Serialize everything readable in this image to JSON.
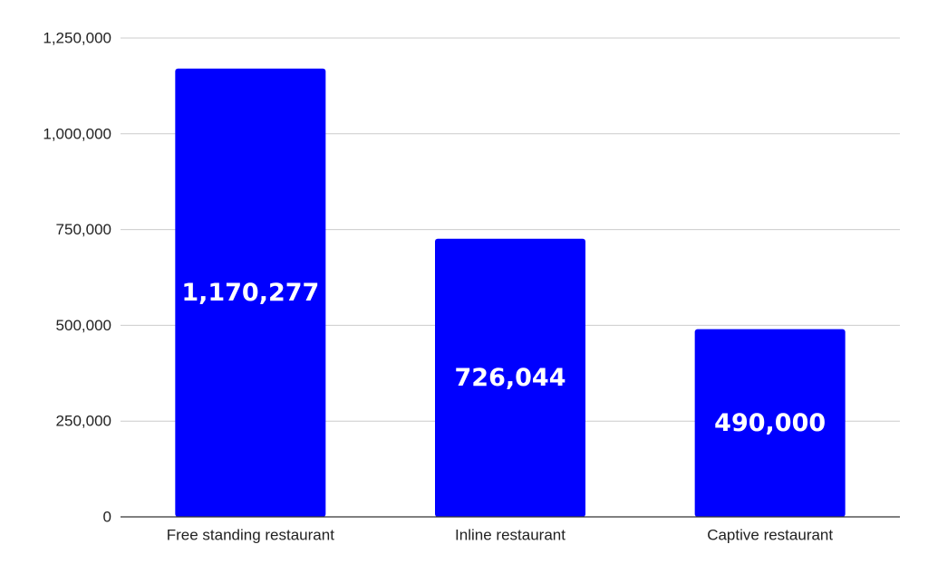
{
  "chart_data": {
    "type": "bar",
    "title": "",
    "xlabel": "",
    "ylabel": "",
    "categories": [
      "Free standing restaurant",
      "Inline restaurant",
      "Captive restaurant"
    ],
    "values": [
      1170277,
      726044,
      490000
    ],
    "data_labels": [
      "1,170,277",
      "726,044",
      "490,000"
    ],
    "ylim": [
      0,
      1250000
    ],
    "yticks": [
      0,
      250000,
      500000,
      750000,
      1000000,
      1250000
    ],
    "ytick_labels": [
      "0",
      "250,000",
      "500,000",
      "750,000",
      "1,000,000",
      "1,250,000"
    ],
    "grid": true,
    "legend": "none",
    "colors": {
      "bar": "#0000ff",
      "grid": "#cccccc",
      "axis": "#333333",
      "data_label": "#ffffff"
    }
  }
}
